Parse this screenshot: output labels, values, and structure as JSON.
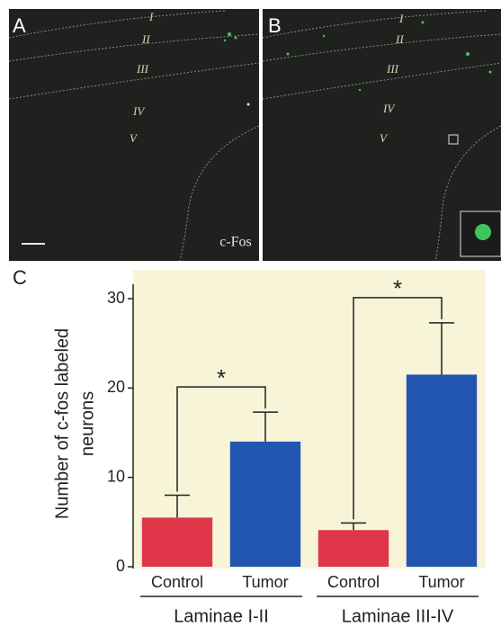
{
  "image_panels": [
    {
      "label": "A",
      "laminae": [
        "I",
        "II",
        "III",
        "IV",
        "V"
      ],
      "stain": "c-Fos"
    },
    {
      "label": "B",
      "laminae": [
        "I",
        "II",
        "III",
        "IV",
        "V"
      ]
    }
  ],
  "chart_data": {
    "type": "bar",
    "panel_label": "C",
    "ylabel": [
      "Number of c-fos labeled",
      "neurons"
    ],
    "categories": [
      "Control",
      "Tumor",
      "Control",
      "Tumor"
    ],
    "groups": [
      "Laminae I-II",
      "Laminae III-IV"
    ],
    "values": [
      5.5,
      14.0,
      4.1,
      21.5
    ],
    "errors": [
      2.5,
      3.3,
      0.8,
      5.8
    ],
    "colors": [
      "#e0364a",
      "#2255b0",
      "#e0364a",
      "#2255b0"
    ],
    "significance": [
      "*",
      "*"
    ],
    "ylim": [
      0,
      30
    ],
    "yticks": [
      0,
      10,
      20,
      30
    ],
    "grid": false
  }
}
